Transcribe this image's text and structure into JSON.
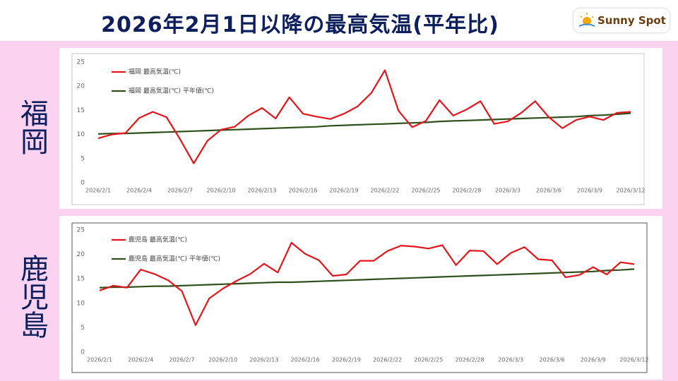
{
  "slide": {
    "title": "2026年2月1日以降の最高気温(平年比)",
    "logo": "Sunny Spot"
  },
  "chart_data": [
    {
      "type": "line",
      "region": "福岡",
      "categories": [
        "2026/2/1",
        null,
        null,
        "2026/2/4",
        null,
        null,
        "2026/2/7",
        null,
        null,
        "2026/2/10",
        null,
        null,
        "2026/2/13",
        null,
        null,
        "2026/2/16",
        null,
        null,
        "2026/2/19",
        null,
        null,
        "2026/2/22",
        null,
        null,
        "2026/2/25",
        null,
        null,
        "2026/2/28",
        null,
        null,
        "2026/3/3",
        null,
        null,
        "2026/3/6",
        null,
        null,
        "2026/3/9",
        null,
        null,
        "2026/3/12"
      ],
      "series": [
        {
          "name": "福岡 最高気温(℃)",
          "color": "#e3161d",
          "values": [
            9.2,
            10.0,
            10.3,
            13.4,
            14.7,
            13.6,
            9.0,
            4.0,
            8.7,
            11.0,
            11.6,
            13.9,
            15.5,
            13.3,
            17.7,
            14.3,
            13.7,
            13.2,
            14.3,
            15.8,
            18.6,
            23.3,
            14.9,
            11.5,
            12.8,
            17.1,
            13.9,
            15.2,
            16.9,
            12.2,
            12.7,
            14.5,
            16.9,
            13.6,
            11.3,
            13.0,
            13.7,
            13.0,
            14.5,
            14.7
          ]
        },
        {
          "name": "福岡 最高気温(℃) 平年値(℃)",
          "color": "#2f4f1c",
          "values": [
            10.1,
            10.2,
            10.2,
            10.3,
            10.4,
            10.5,
            10.6,
            10.7,
            10.8,
            10.9,
            11.0,
            11.1,
            11.2,
            11.3,
            11.4,
            11.5,
            11.6,
            11.8,
            11.9,
            12.0,
            12.1,
            12.2,
            12.3,
            12.4,
            12.5,
            12.7,
            12.8,
            12.9,
            13.0,
            13.1,
            13.2,
            13.3,
            13.4,
            13.5,
            13.6,
            13.7,
            13.9,
            14.0,
            14.2,
            14.4
          ]
        }
      ],
      "ylim": [
        0,
        25
      ],
      "yticks": [
        0,
        5,
        10,
        15,
        20,
        25
      ]
    },
    {
      "type": "line",
      "region": "鹿児島",
      "categories": [
        "2026/2/1",
        null,
        null,
        "2026/2/4",
        null,
        null,
        "2026/2/7",
        null,
        null,
        "2026/2/10",
        null,
        null,
        "2026/2/13",
        null,
        null,
        "2026/2/16",
        null,
        null,
        "2026/2/19",
        null,
        null,
        "2026/2/22",
        null,
        null,
        "2026/2/25",
        null,
        null,
        "2026/2/28",
        null,
        null,
        "2026/3/3",
        null,
        null,
        "2026/3/6",
        null,
        null,
        "2026/3/9",
        null,
        null,
        "2026/3/12"
      ],
      "series": [
        {
          "name": "鹿児島 最高気温(℃)",
          "color": "#e3161d",
          "values": [
            12.6,
            13.6,
            13.2,
            16.9,
            16.0,
            14.7,
            12.5,
            5.5,
            11.0,
            13.0,
            14.6,
            16.0,
            18.1,
            16.3,
            22.4,
            20.1,
            18.8,
            15.6,
            15.9,
            18.7,
            18.7,
            20.7,
            21.8,
            21.6,
            21.2,
            21.9,
            17.8,
            20.8,
            20.7,
            18.0,
            20.3,
            21.5,
            19.0,
            18.8,
            15.3,
            15.8,
            17.4,
            15.9,
            18.4,
            18.0
          ]
        },
        {
          "name": "鹿児島 最高気温(℃) 平年値(℃)",
          "color": "#2f4f1c",
          "values": [
            13.2,
            13.3,
            13.3,
            13.4,
            13.5,
            13.5,
            13.6,
            13.7,
            13.8,
            13.9,
            14.0,
            14.1,
            14.2,
            14.3,
            14.3,
            14.4,
            14.5,
            14.6,
            14.7,
            14.8,
            14.9,
            15.0,
            15.1,
            15.2,
            15.3,
            15.4,
            15.5,
            15.6,
            15.7,
            15.8,
            15.9,
            16.0,
            16.1,
            16.2,
            16.3,
            16.4,
            16.5,
            16.7,
            16.8,
            17.0
          ]
        }
      ],
      "ylim": [
        0,
        25
      ],
      "yticks": [
        0,
        5,
        10,
        15,
        20,
        25
      ]
    }
  ]
}
